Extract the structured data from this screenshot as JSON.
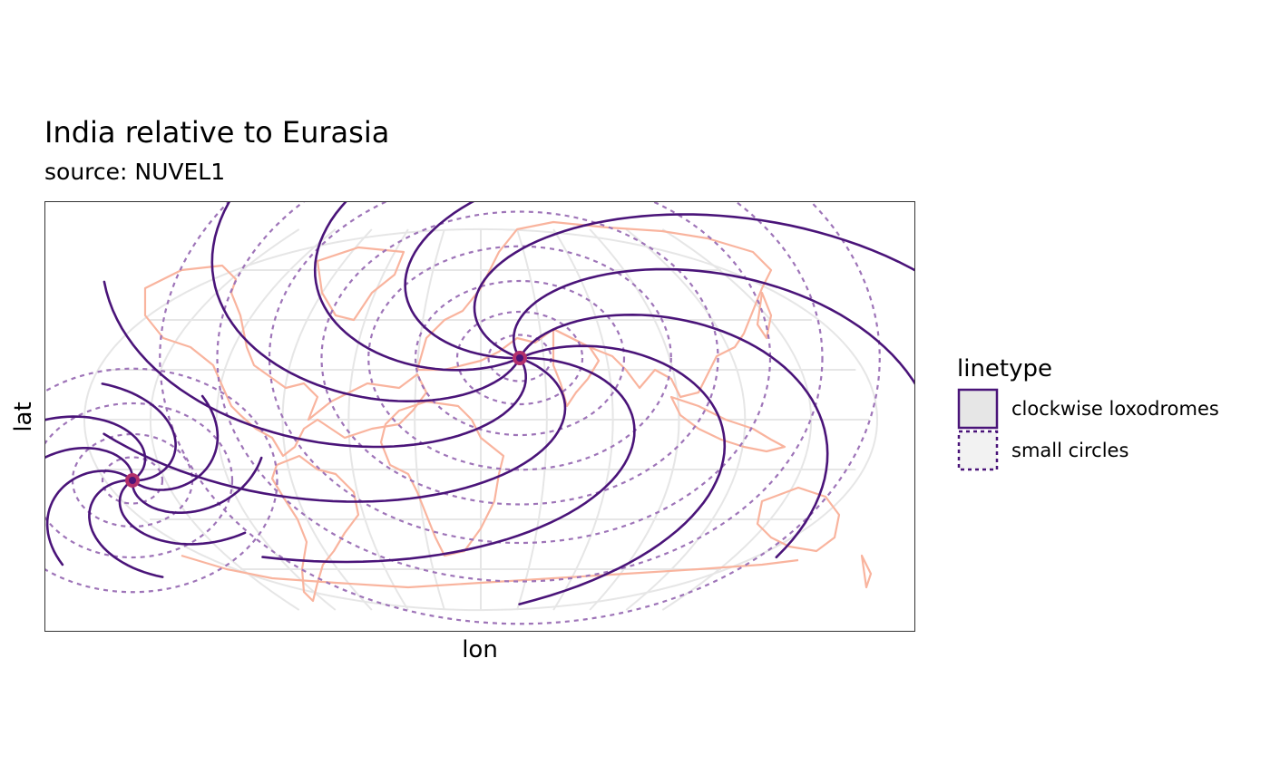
{
  "chart": {
    "title": "India relative to Eurasia",
    "subtitle": "source: NUVEL1",
    "xlabel": "lon",
    "ylabel": "lat"
  },
  "legend": {
    "title": "linetype",
    "items": [
      {
        "label": "clockwise loxodromes",
        "linetype": "solid"
      },
      {
        "label": "small circles",
        "linetype": "dashed"
      }
    ]
  },
  "colors": {
    "loxodrome": "#4a1479",
    "small_circle": "#9e74b8",
    "coastline": "#f9b49e",
    "graticule": "#e6e6e6",
    "pole": "#b3306b",
    "pole_core": "#4a1479"
  },
  "chart_data": {
    "type": "map",
    "projection": "Natural Earth-style pseudocylindrical (world)",
    "title": "India relative to Eurasia",
    "subtitle": "source: NUVEL1",
    "xlabel": "lon",
    "ylabel": "lat",
    "grid": true,
    "legend_position": "right",
    "poles": [
      {
        "name": "euler-pole",
        "lon": 20,
        "lat": 25
      },
      {
        "name": "antipole",
        "lon": -160,
        "lat": -25
      }
    ],
    "series": [
      {
        "name": "clockwise loxodromes",
        "linetype": "solid"
      },
      {
        "name": "small circles",
        "linetype": "dashed"
      }
    ]
  }
}
